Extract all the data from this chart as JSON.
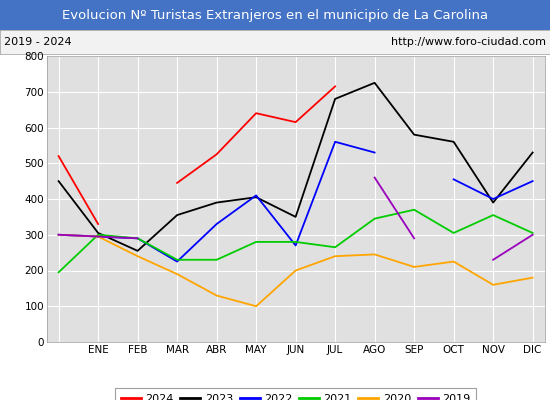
{
  "title": "Evolucion Nº Turistas Extranjeros en el municipio de La Carolina",
  "subtitle_left": "2019 - 2024",
  "subtitle_right": "http://www.foro-ciudad.com",
  "months": [
    "",
    "ENE",
    "FEB",
    "MAR",
    "ABR",
    "MAY",
    "JUN",
    "JUL",
    "AGO",
    "SEP",
    "OCT",
    "NOV",
    "DIC"
  ],
  "series": {
    "2024": [
      520,
      330,
      null,
      445,
      525,
      640,
      615,
      715,
      null,
      null,
      null,
      null,
      null
    ],
    "2023": [
      450,
      305,
      255,
      355,
      390,
      405,
      350,
      680,
      725,
      580,
      560,
      390,
      530
    ],
    "2022": [
      300,
      295,
      290,
      225,
      330,
      410,
      270,
      560,
      530,
      null,
      455,
      400,
      450
    ],
    "2021": [
      195,
      300,
      290,
      230,
      230,
      280,
      280,
      265,
      345,
      370,
      305,
      355,
      305
    ],
    "2020": [
      300,
      295,
      240,
      190,
      130,
      100,
      200,
      240,
      245,
      210,
      225,
      160,
      180
    ],
    "2019": [
      300,
      295,
      290,
      null,
      null,
      null,
      null,
      null,
      460,
      290,
      null,
      230,
      300
    ]
  },
  "colors": {
    "2024": "#FF0000",
    "2023": "#000000",
    "2022": "#0000FF",
    "2021": "#00CC00",
    "2020": "#FFA500",
    "2019": "#9900BB"
  },
  "ylim": [
    0,
    800
  ],
  "yticks": [
    0,
    100,
    200,
    300,
    400,
    500,
    600,
    700,
    800
  ],
  "title_bg": "#4472C4",
  "title_color": "#FFFFFF",
  "plot_bg": "#E0E0E0",
  "grid_color": "#FFFFFF",
  "legend_order": [
    "2024",
    "2023",
    "2022",
    "2021",
    "2020",
    "2019"
  ],
  "fig_bg": "#FFFFFF"
}
